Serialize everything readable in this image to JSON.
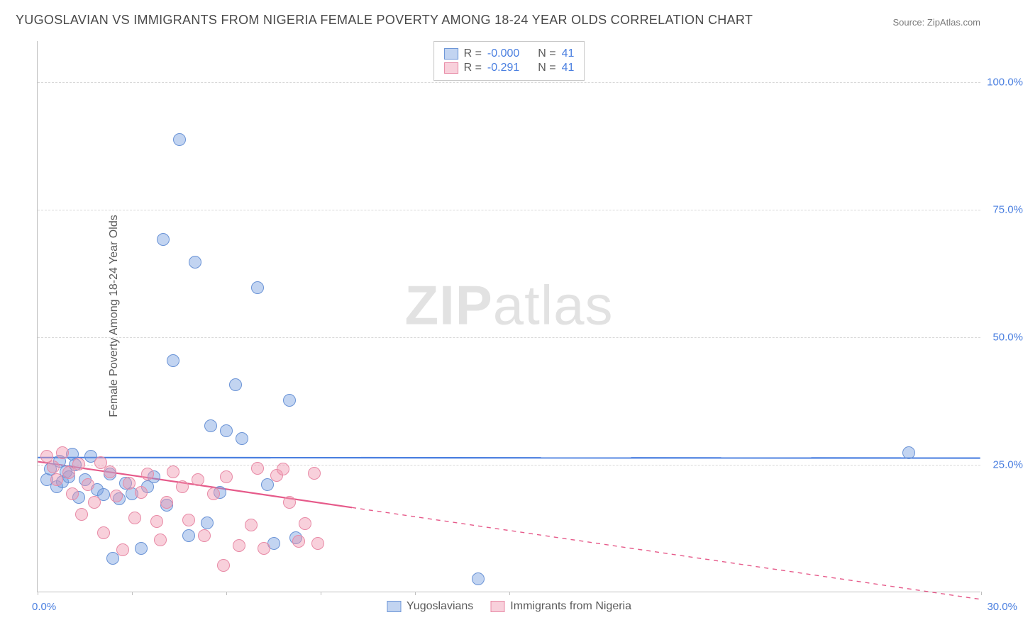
{
  "title": "YUGOSLAVIAN VS IMMIGRANTS FROM NIGERIA FEMALE POVERTY AMONG 18-24 YEAR OLDS CORRELATION CHART",
  "source": "Source: ZipAtlas.com",
  "ylabel": "Female Poverty Among 18-24 Year Olds",
  "watermark_a": "ZIP",
  "watermark_b": "atlas",
  "chart": {
    "type": "scatter",
    "xlim": [
      0,
      30
    ],
    "ylim": [
      0,
      108
    ],
    "xtick_positions": [
      0,
      3,
      6,
      9,
      12,
      15,
      30
    ],
    "xtick_labels": {
      "0": "0.0%",
      "30": "30.0%"
    },
    "ytick_positions": [
      25,
      50,
      75,
      100
    ],
    "ytick_labels": [
      "25.0%",
      "50.0%",
      "75.0%",
      "100.0%"
    ],
    "grid_color": "#d8d8d8",
    "axis_color": "#bfbfbf",
    "background": "#ffffff",
    "series": [
      {
        "key": "yugoslavians",
        "label": "Yugoslavians",
        "fill": "rgba(120,160,225,0.45)",
        "stroke": "#6a93d6",
        "r_value": "-0.000",
        "n_value": "41",
        "trend": {
          "solid": [
            [
              0,
              26.3
            ],
            [
              30,
              26.2
            ]
          ],
          "dash": null,
          "color": "#4a7fe0"
        },
        "points": [
          [
            0.3,
            22
          ],
          [
            0.4,
            24
          ],
          [
            0.6,
            20.5
          ],
          [
            0.7,
            25.5
          ],
          [
            0.8,
            21.5
          ],
          [
            0.9,
            23.5
          ],
          [
            1.0,
            22.5
          ],
          [
            1.1,
            27
          ],
          [
            1.2,
            24.8
          ],
          [
            1.3,
            18.5
          ],
          [
            1.5,
            22
          ],
          [
            1.7,
            26.5
          ],
          [
            1.9,
            20
          ],
          [
            2.1,
            19
          ],
          [
            2.3,
            23
          ],
          [
            2.4,
            6.5
          ],
          [
            2.6,
            18.2
          ],
          [
            2.8,
            21.2
          ],
          [
            3.0,
            19.2
          ],
          [
            3.3,
            8.5
          ],
          [
            3.5,
            20.5
          ],
          [
            3.7,
            22.5
          ],
          [
            4.0,
            69
          ],
          [
            4.1,
            17.0
          ],
          [
            4.3,
            45.2
          ],
          [
            4.5,
            88.5
          ],
          [
            4.8,
            11
          ],
          [
            5.0,
            64.5
          ],
          [
            5.4,
            13.5
          ],
          [
            5.5,
            32.5
          ],
          [
            5.8,
            19.5
          ],
          [
            6.0,
            31.5
          ],
          [
            6.3,
            40.5
          ],
          [
            6.5,
            30
          ],
          [
            7.0,
            59.5
          ],
          [
            7.3,
            21
          ],
          [
            7.5,
            9.5
          ],
          [
            8.0,
            37.5
          ],
          [
            8.2,
            10.5
          ],
          [
            14.0,
            2.5
          ],
          [
            27.7,
            27.2
          ]
        ]
      },
      {
        "key": "nigeria",
        "label": "Immigrants from Nigeria",
        "fill": "rgba(240,150,175,0.45)",
        "stroke": "#e88aa6",
        "r_value": "-0.291",
        "n_value": "41",
        "trend": {
          "solid": [
            [
              0,
              25.5
            ],
            [
              10,
              16.5
            ]
          ],
          "dash": [
            [
              10,
              16.5
            ],
            [
              30,
              -1.5
            ]
          ],
          "color": "#e65a8a"
        },
        "points": [
          [
            0.3,
            26.5
          ],
          [
            0.5,
            24.5
          ],
          [
            0.6,
            22
          ],
          [
            0.8,
            27.2
          ],
          [
            1.0,
            23.3
          ],
          [
            1.1,
            19.2
          ],
          [
            1.3,
            25
          ],
          [
            1.4,
            15.2
          ],
          [
            1.6,
            21
          ],
          [
            1.8,
            17.5
          ],
          [
            2.0,
            25.2
          ],
          [
            2.1,
            11.5
          ],
          [
            2.3,
            23.5
          ],
          [
            2.5,
            18.8
          ],
          [
            2.7,
            8.2
          ],
          [
            2.9,
            21.3
          ],
          [
            3.1,
            14.5
          ],
          [
            3.3,
            19.5
          ],
          [
            3.5,
            23
          ],
          [
            3.8,
            13.8
          ],
          [
            3.9,
            10.2
          ],
          [
            4.1,
            17.5
          ],
          [
            4.3,
            23.5
          ],
          [
            4.6,
            20.5
          ],
          [
            4.8,
            14
          ],
          [
            5.1,
            22
          ],
          [
            5.3,
            11
          ],
          [
            5.6,
            19.2
          ],
          [
            5.9,
            5.2
          ],
          [
            6.0,
            22.5
          ],
          [
            6.4,
            9
          ],
          [
            6.8,
            13
          ],
          [
            7.0,
            24.2
          ],
          [
            7.2,
            8.5
          ],
          [
            7.6,
            22.8
          ],
          [
            7.8,
            24
          ],
          [
            8.0,
            17.5
          ],
          [
            8.3,
            9.8
          ],
          [
            8.5,
            13.3
          ],
          [
            8.8,
            23.2
          ],
          [
            8.9,
            9.5
          ]
        ]
      }
    ]
  },
  "legend_top": {
    "r_label": "R =",
    "n_label": "N ="
  }
}
